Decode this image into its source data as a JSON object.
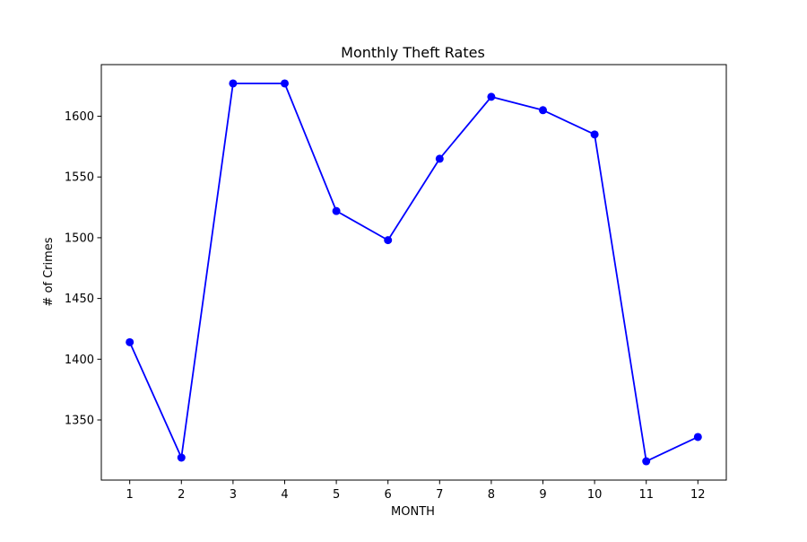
{
  "chart_data": {
    "type": "line",
    "title": "Monthly Theft Rates",
    "xlabel": "MONTH",
    "ylabel": "# of Crimes",
    "x": [
      1,
      2,
      3,
      4,
      5,
      6,
      7,
      8,
      9,
      10,
      11,
      12
    ],
    "xticks": [
      "1",
      "2",
      "3",
      "4",
      "5",
      "6",
      "7",
      "8",
      "9",
      "10",
      "11",
      "12"
    ],
    "yticks": [
      1350,
      1400,
      1450,
      1500,
      1550,
      1600
    ],
    "xlim": [
      0.45,
      12.55
    ],
    "ylim": [
      1300.5,
      1642.5
    ],
    "series": [
      {
        "values": [
          1414,
          1319,
          1627,
          1627,
          1522,
          1498,
          1565,
          1616,
          1605,
          1585,
          1316,
          1336
        ],
        "color": "#0000ff",
        "marker": "circle"
      }
    ],
    "grid": false,
    "legend": "none"
  }
}
